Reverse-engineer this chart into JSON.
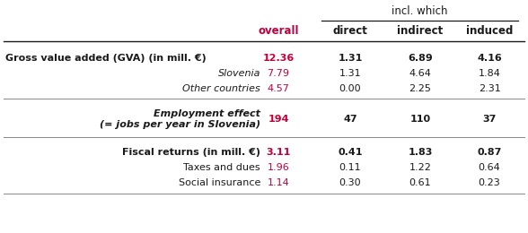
{
  "title_header": "incl. which",
  "col_headers": [
    "overall",
    "direct",
    "indirect",
    "induced"
  ],
  "col_header_colors": [
    "#C0003C",
    "#1a1a1a",
    "#1a1a1a",
    "#1a1a1a"
  ],
  "rows": [
    {
      "label": "Gross value added (GVA) (in mill. €)",
      "label_style": "bold",
      "label_align": "left",
      "values": [
        "12.36",
        "1.31",
        "6.89",
        "4.16"
      ],
      "overall_red": true,
      "bold": true
    },
    {
      "label": "Slovenia",
      "label_style": "italic",
      "label_align": "right",
      "values": [
        "7.79",
        "1.31",
        "4.64",
        "1.84"
      ],
      "overall_red": true,
      "bold": false
    },
    {
      "label": "Other countries",
      "label_style": "italic",
      "label_align": "right",
      "values": [
        "4.57",
        "0.00",
        "2.25",
        "2.31"
      ],
      "overall_red": true,
      "bold": false
    },
    {
      "label": "Employment effect\n(= jobs per year in Slovenia)",
      "label_style": "bold_italic",
      "label_align": "right",
      "values": [
        "194",
        "47",
        "110",
        "37"
      ],
      "overall_red": true,
      "bold": true
    },
    {
      "label": "Fiscal returns (in mill. €)",
      "label_style": "bold",
      "label_align": "right",
      "values": [
        "3.11",
        "0.41",
        "1.83",
        "0.87"
      ],
      "overall_red": true,
      "bold": true
    },
    {
      "label": "Taxes and dues",
      "label_style": "normal",
      "label_align": "right",
      "values": [
        "1.96",
        "0.11",
        "1.22",
        "0.64"
      ],
      "overall_red": true,
      "bold": false
    },
    {
      "label": "Social insurance",
      "label_style": "normal",
      "label_align": "right",
      "values": [
        "1.14",
        "0.30",
        "0.61",
        "0.23"
      ],
      "overall_red": true,
      "bold": false
    }
  ],
  "red_color": "#C0003C",
  "black_color": "#1a1a1a",
  "line_color": "#888888",
  "bg_color": "#ffffff",
  "figsize": [
    5.88,
    2.6
  ],
  "dpi": 100
}
